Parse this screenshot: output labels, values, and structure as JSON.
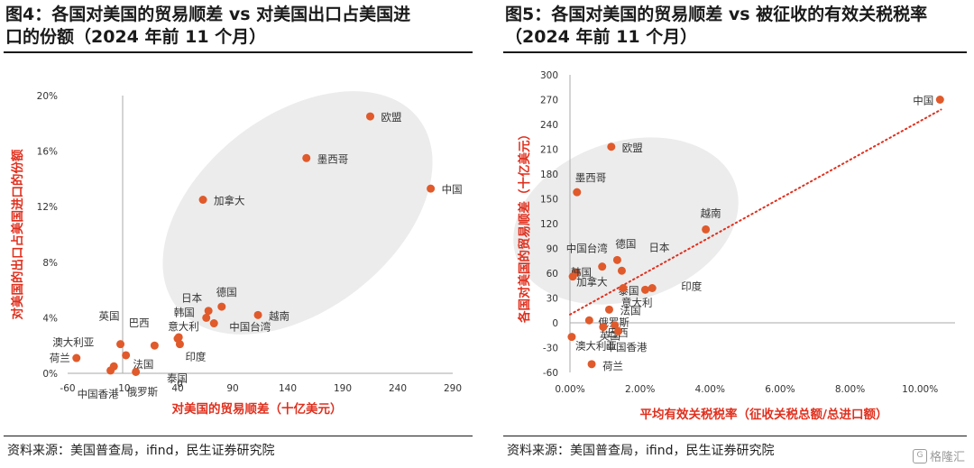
{
  "colors": {
    "point": "#e05a2b",
    "accent_text": "#e0301e",
    "ellipse": "#ececec",
    "trendline": "#e0301e"
  },
  "left": {
    "title_line1": "图4：各国对美国的贸易顺差 vs 对美国出口占美国进",
    "title_line2": "口的份额（2024 年前 11 个月）",
    "source": "资料来源：美国普查局，ifind，民生证券研究院"
  },
  "right": {
    "title_line1": "图5：各国对美国的贸易顺差 vs 被征收的有效关税税率",
    "title_line2": "（2024 年前 11 个月）",
    "source": "资料来源：美国普查局，ifind，民生证券研究院"
  },
  "watermark": {
    "glyph": "G",
    "text": "格隆汇"
  },
  "chart_data": [
    {
      "type": "scatter",
      "title": "",
      "xlabel": "对美国的贸易顺差（十亿美元）",
      "ylabel": "对美国的出口占美国进口的份额",
      "xlim": [
        -60,
        290
      ],
      "ylim": [
        0,
        0.2
      ],
      "x_ticks": [
        "-60",
        "-10",
        "40",
        "90",
        "140",
        "190",
        "240",
        "290"
      ],
      "x_tick_values": [
        -60,
        -10,
        40,
        90,
        140,
        190,
        240,
        290
      ],
      "y_ticks": [
        "0%",
        "4%",
        "8%",
        "12%",
        "16%",
        "20%"
      ],
      "y_tick_values": [
        0,
        0.04,
        0.08,
        0.12,
        0.16,
        0.2
      ],
      "points": [
        {
          "label": "中国",
          "x": 270,
          "y": 0.133
        },
        {
          "label": "欧盟",
          "x": 215,
          "y": 0.185
        },
        {
          "label": "墨西哥",
          "x": 157,
          "y": 0.155
        },
        {
          "label": "加拿大",
          "x": 63,
          "y": 0.125
        },
        {
          "label": "越南",
          "x": 113,
          "y": 0.042
        },
        {
          "label": "德国",
          "x": 80,
          "y": 0.048
        },
        {
          "label": "日本",
          "x": 68,
          "y": 0.045
        },
        {
          "label": "韩国",
          "x": 66,
          "y": 0.04
        },
        {
          "label": "中国台湾",
          "x": 73,
          "y": 0.036
        },
        {
          "label": "意大利",
          "x": 41,
          "y": 0.026
        },
        {
          "label": "印度",
          "x": 42,
          "y": 0.021
        },
        {
          "label": "泰国",
          "x": 40,
          "y": 0.025
        },
        {
          "label": "法国",
          "x": 19,
          "y": 0.02
        },
        {
          "label": "英国",
          "x": -12,
          "y": 0.021
        },
        {
          "label": "巴西",
          "x": -7,
          "y": 0.013
        },
        {
          "label": "澳大利亚",
          "x": -18,
          "y": 0.005
        },
        {
          "label": "中国香港",
          "x": -21,
          "y": 0.002
        },
        {
          "label": "俄罗斯",
          "x": 2,
          "y": 0.001
        },
        {
          "label": "荷兰",
          "x": -52,
          "y": 0.011
        }
      ],
      "extra_labels": [
        "0"
      ]
    },
    {
      "type": "scatter",
      "title": "",
      "xlabel": "平均有效关税税率（征收关税总额/总进口额）",
      "ylabel": "各国对美国的贸易顺差（十亿美元）",
      "xlim": [
        0,
        0.11
      ],
      "ylim": [
        -60,
        300
      ],
      "x_ticks": [
        "0.00%",
        "2.00%",
        "4.00%",
        "6.00%",
        "8.00%",
        "10.00%"
      ],
      "x_tick_values": [
        0,
        0.02,
        0.04,
        0.06,
        0.08,
        0.1
      ],
      "y_ticks": [
        "-60",
        "-30",
        "0",
        "30",
        "60",
        "90",
        "120",
        "150",
        "180",
        "210",
        "240",
        "270",
        "300"
      ],
      "y_tick_values": [
        -60,
        -30,
        0,
        30,
        60,
        90,
        120,
        150,
        180,
        210,
        240,
        270,
        300
      ],
      "trendline": {
        "x": [
          0,
          0.106
        ],
        "y": [
          10,
          258
        ],
        "style": "dotted"
      },
      "points": [
        {
          "label": "中国",
          "x": 0.1057,
          "y": 270
        },
        {
          "label": "欧盟",
          "x": 0.0118,
          "y": 213
        },
        {
          "label": "墨西哥",
          "x": 0.002,
          "y": 158
        },
        {
          "label": "越南",
          "x": 0.0388,
          "y": 113
        },
        {
          "label": "德国",
          "x": 0.0135,
          "y": 76
        },
        {
          "label": "中国台湾",
          "x": 0.0092,
          "y": 68
        },
        {
          "label": "日本",
          "x": 0.0148,
          "y": 63
        },
        {
          "label": "韩国",
          "x": 0.0018,
          "y": 61
        },
        {
          "label": "加拿大",
          "x": 0.0008,
          "y": 56
        },
        {
          "label": "印度",
          "x": 0.0235,
          "y": 42
        },
        {
          "label": "泰国",
          "x": 0.0215,
          "y": 40
        },
        {
          "label": "意大利",
          "x": 0.0152,
          "y": 42
        },
        {
          "label": "法国",
          "x": 0.0112,
          "y": 16
        },
        {
          "label": "俄罗斯",
          "x": 0.0055,
          "y": 3
        },
        {
          "label": "英国",
          "x": 0.0095,
          "y": -5
        },
        {
          "label": "巴西",
          "x": 0.0128,
          "y": -3
        },
        {
          "label": "中国香港",
          "x": 0.0138,
          "y": -10
        },
        {
          "label": "澳大利亚",
          "x": 0.0005,
          "y": -17
        },
        {
          "label": "荷兰",
          "x": 0.0062,
          "y": -50
        }
      ]
    }
  ]
}
